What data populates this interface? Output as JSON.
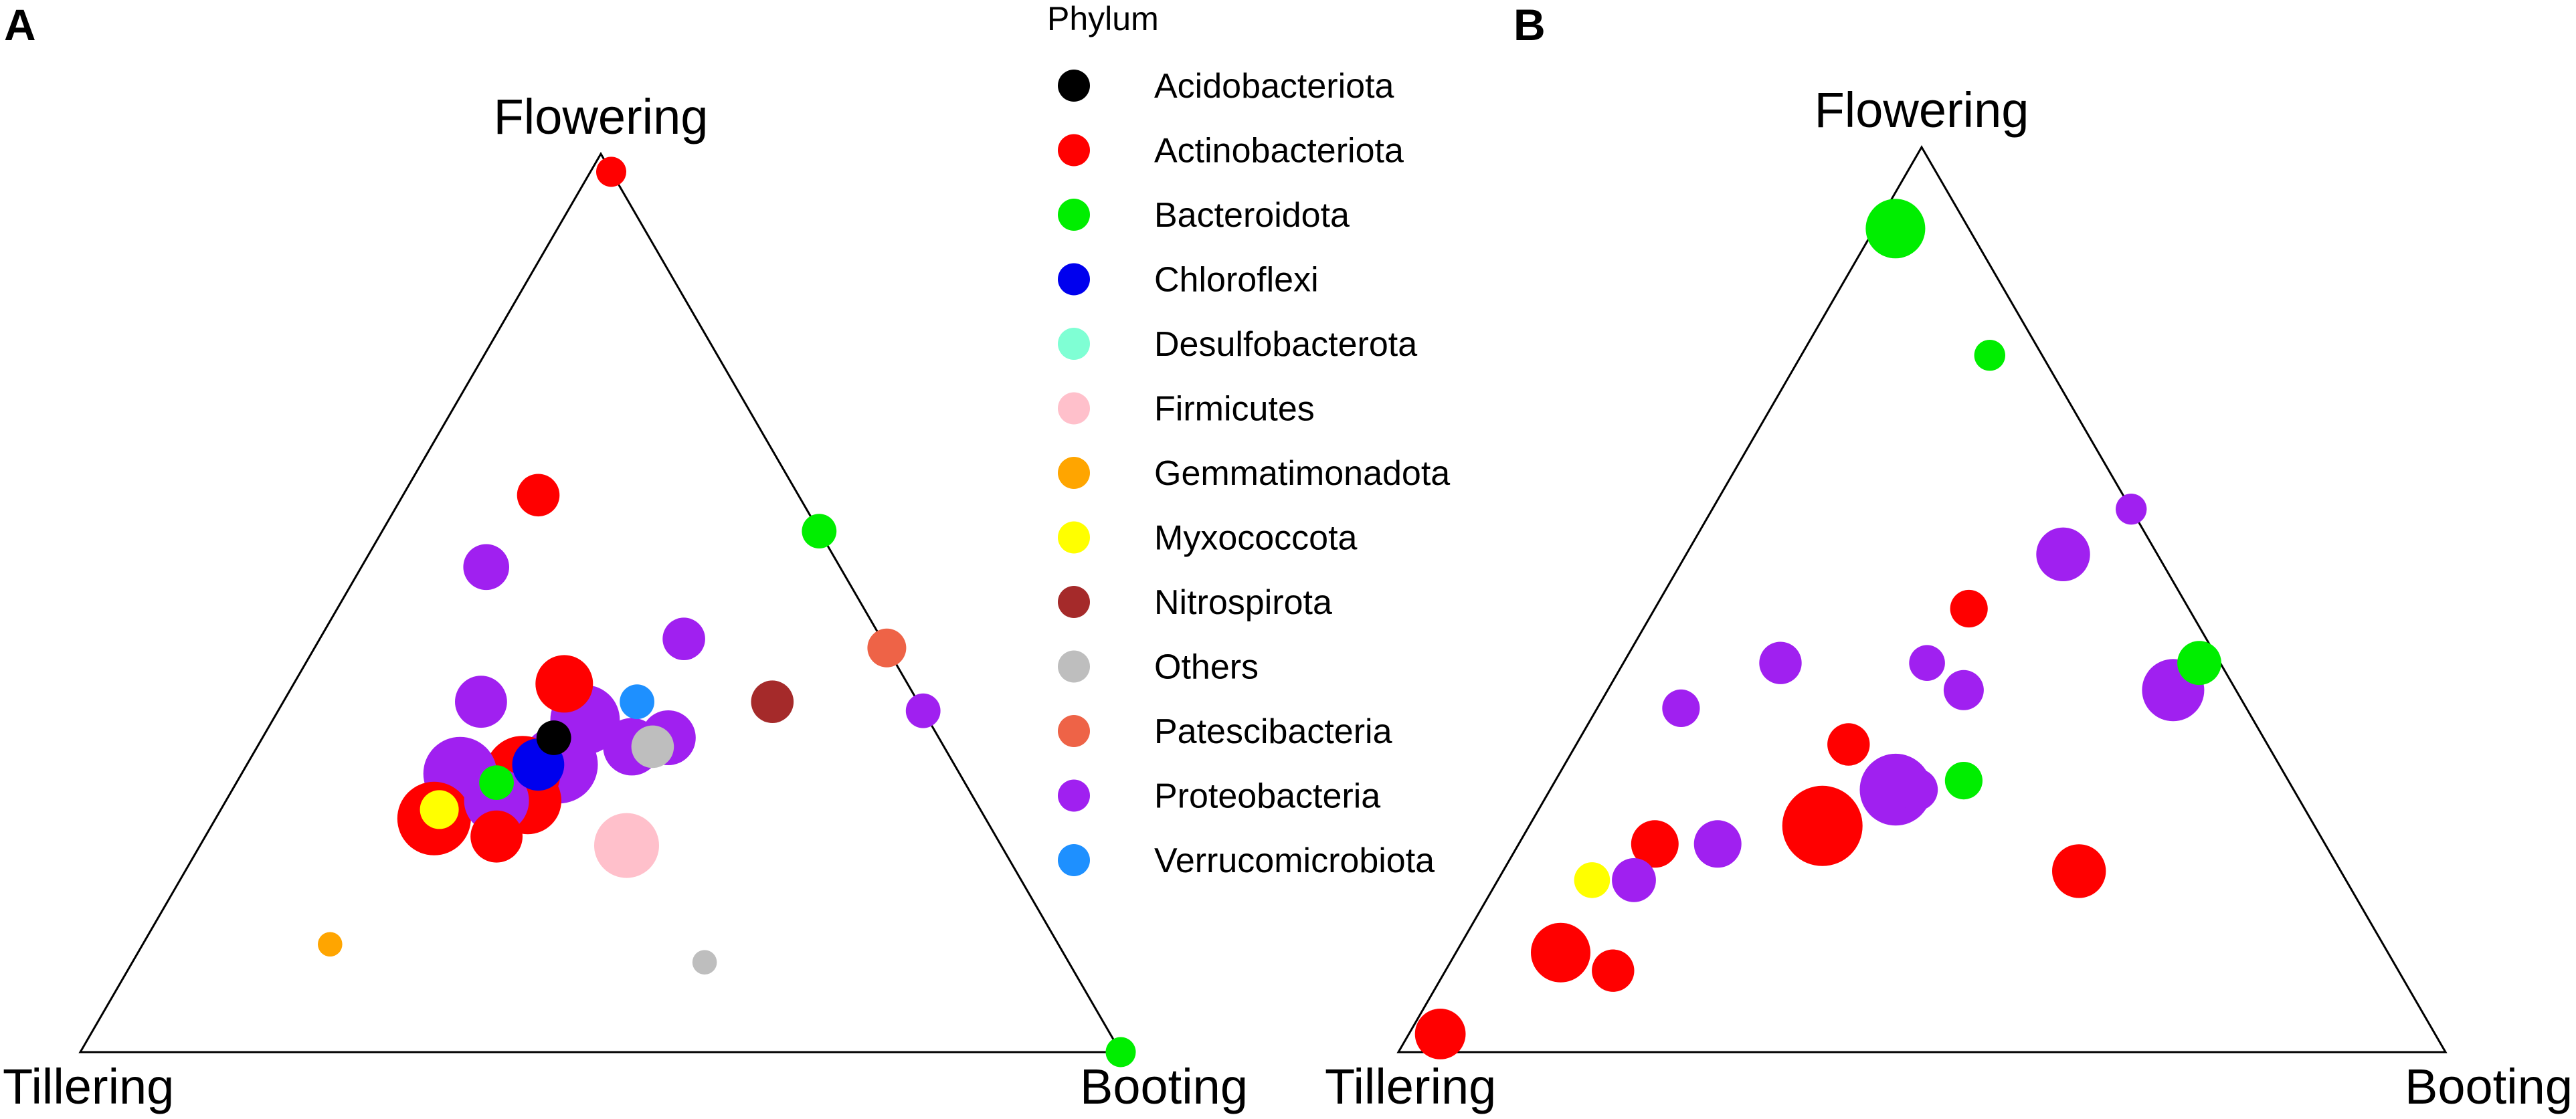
{
  "panels": {
    "a_label": "A",
    "b_label": "B"
  },
  "legend": {
    "title": "Phylum",
    "items": [
      {
        "name": "Acidobacteriota",
        "color": "#000000"
      },
      {
        "name": "Actinobacteriota",
        "color": "#ff0000"
      },
      {
        "name": "Bacteroidota",
        "color": "#00ee00"
      },
      {
        "name": "Chloroflexi",
        "color": "#0000ee"
      },
      {
        "name": "Desulfobacterota",
        "color": "#7fffd4"
      },
      {
        "name": "Firmicutes",
        "color": "#ffc0cb"
      },
      {
        "name": "Gemmatimonadota",
        "color": "#ffa500"
      },
      {
        "name": "Myxococcota",
        "color": "#ffff00"
      },
      {
        "name": "Nitrospirota",
        "color": "#a52a2a"
      },
      {
        "name": "Others",
        "color": "#bebebe"
      },
      {
        "name": "Patescibacteria",
        "color": "#ee6347"
      },
      {
        "name": "Proteobacteria",
        "color": "#a020f0"
      },
      {
        "name": "Verrucomicrobiota",
        "color": "#1e90ff"
      }
    ]
  },
  "chart_data": [
    {
      "type": "scatter",
      "subtype": "ternary",
      "panel": "A",
      "vertices": {
        "top": "Flowering",
        "left": "Tillering",
        "right": "Booting"
      },
      "points": [
        {
          "phylum": "Proteobacteria",
          "tillering": 0.38,
          "booting": 0.3,
          "flowering": 0.32,
          "size": 1.0
        },
        {
          "phylum": "Actinobacteriota",
          "tillering": 0.42,
          "booting": 0.27,
          "flowering": 0.31,
          "size": 0.95
        },
        {
          "phylum": "Proteobacteria",
          "tillering": 0.48,
          "booting": 0.21,
          "flowering": 0.31,
          "size": 0.9
        },
        {
          "phylum": "Actinobacteriota",
          "tillering": 0.53,
          "booting": 0.21,
          "flowering": 0.26,
          "size": 0.9
        },
        {
          "phylum": "Firmicutes",
          "tillering": 0.36,
          "booting": 0.41,
          "flowering": 0.23,
          "size": 0.7
        },
        {
          "phylum": "Proteobacteria",
          "tillering": 0.33,
          "booting": 0.3,
          "flowering": 0.37,
          "size": 0.8
        },
        {
          "phylum": "Actinobacteriota",
          "tillering": 0.43,
          "booting": 0.29,
          "flowering": 0.28,
          "size": 0.75
        },
        {
          "phylum": "Proteobacteria",
          "tillering": 0.46,
          "booting": 0.26,
          "flowering": 0.28,
          "size": 0.7
        },
        {
          "phylum": "Proteobacteria",
          "tillering": 0.3,
          "booting": 0.36,
          "flowering": 0.34,
          "size": 0.55
        },
        {
          "phylum": "Chloroflexi",
          "tillering": 0.4,
          "booting": 0.28,
          "flowering": 0.32,
          "size": 0.45
        },
        {
          "phylum": "Actinobacteriota",
          "tillering": 0.33,
          "booting": 0.26,
          "flowering": 0.41,
          "size": 0.55
        },
        {
          "phylum": "Proteobacteria",
          "tillering": 0.26,
          "booting": 0.39,
          "flowering": 0.35,
          "size": 0.5
        },
        {
          "phylum": "Proteobacteria",
          "tillering": 0.42,
          "booting": 0.19,
          "flowering": 0.39,
          "size": 0.45
        },
        {
          "phylum": "Actinobacteriota",
          "tillering": 0.48,
          "booting": 0.28,
          "flowering": 0.24,
          "size": 0.45
        },
        {
          "phylum": "Nitrospirota",
          "tillering": 0.14,
          "booting": 0.47,
          "flowering": 0.39,
          "size": 0.3
        },
        {
          "phylum": "Proteobacteria",
          "tillering": 0.34,
          "booting": 0.12,
          "flowering": 0.54,
          "size": 0.35
        },
        {
          "phylum": "Actinobacteriota",
          "tillering": 0.25,
          "booting": 0.13,
          "flowering": 0.62,
          "size": 0.3
        },
        {
          "phylum": "Proteobacteria",
          "tillering": 0.19,
          "booting": 0.35,
          "flowering": 0.46,
          "size": 0.3
        },
        {
          "phylum": "Others",
          "tillering": 0.28,
          "booting": 0.38,
          "flowering": 0.34,
          "size": 0.3
        },
        {
          "phylum": "Myxococcota",
          "tillering": 0.52,
          "booting": 0.21,
          "flowering": 0.27,
          "size": 0.25
        },
        {
          "phylum": "Acidobacteriota",
          "tillering": 0.37,
          "booting": 0.28,
          "flowering": 0.35,
          "size": 0.2
        },
        {
          "phylum": "Bacteroidota",
          "tillering": 0.45,
          "booting": 0.25,
          "flowering": 0.3,
          "size": 0.2
        },
        {
          "phylum": "Verrucomicrobiota",
          "tillering": 0.27,
          "booting": 0.34,
          "flowering": 0.39,
          "size": 0.2
        },
        {
          "phylum": "Patescibacteria",
          "tillering": 0.0,
          "booting": 0.55,
          "flowering": 0.45,
          "size": 0.25
        },
        {
          "phylum": "Bacteroidota",
          "tillering": 0.0,
          "booting": 0.42,
          "flowering": 0.58,
          "size": 0.2
        },
        {
          "phylum": "Proteobacteria",
          "tillering": 0.0,
          "booting": 0.62,
          "flowering": 0.38,
          "size": 0.2
        },
        {
          "phylum": "Actinobacteriota",
          "tillering": 0.0,
          "booting": 0.02,
          "flowering": 0.98,
          "size": 0.15
        },
        {
          "phylum": "Bacteroidota",
          "tillering": 0.0,
          "booting": 1.0,
          "flowering": 0.0,
          "size": 0.15
        },
        {
          "phylum": "Others",
          "tillering": 0.35,
          "booting": 0.55,
          "flowering": 0.1,
          "size": 0.1
        },
        {
          "phylum": "Gemmatimonadota",
          "tillering": 0.7,
          "booting": 0.18,
          "flowering": 0.12,
          "size": 0.1
        }
      ]
    },
    {
      "type": "scatter",
      "subtype": "ternary",
      "panel": "B",
      "vertices": {
        "top": "Flowering",
        "left": "Tillering",
        "right": "Booting"
      },
      "points": [
        {
          "phylum": "Bacteroidota",
          "tillering": 0.07,
          "booting": 0.02,
          "flowering": 0.91,
          "size": 0.55
        },
        {
          "phylum": "Actinobacteriota",
          "tillering": 0.47,
          "booting": 0.28,
          "flowering": 0.25,
          "size": 1.0
        },
        {
          "phylum": "Proteobacteria",
          "tillering": 0.38,
          "booting": 0.33,
          "flowering": 0.29,
          "size": 0.8
        },
        {
          "phylum": "Actinobacteriota",
          "tillering": 0.25,
          "booting": 0.55,
          "flowering": 0.2,
          "size": 0.45
        },
        {
          "phylum": "Proteobacteria",
          "tillering": 0.06,
          "booting": 0.54,
          "flowering": 0.4,
          "size": 0.6
        },
        {
          "phylum": "Proteobacteria",
          "tillering": 0.09,
          "booting": 0.36,
          "flowering": 0.55,
          "size": 0.45
        },
        {
          "phylum": "Actinobacteriota",
          "tillering": 0.79,
          "booting": 0.1,
          "flowering": 0.11,
          "size": 0.55
        },
        {
          "phylum": "Actinobacteriota",
          "tillering": 0.95,
          "booting": 0.03,
          "flowering": 0.02,
          "size": 0.4
        },
        {
          "phylum": "Actinobacteriota",
          "tillering": 0.64,
          "booting": 0.13,
          "flowering": 0.23,
          "size": 0.35
        },
        {
          "phylum": "Actinobacteriota",
          "tillering": 0.75,
          "booting": 0.16,
          "flowering": 0.09,
          "size": 0.28
        },
        {
          "phylum": "Proteobacteria",
          "tillering": 0.58,
          "booting": 0.19,
          "flowering": 0.23,
          "size": 0.35
        },
        {
          "phylum": "Proteobacteria",
          "tillering": 0.68,
          "booting": 0.13,
          "flowering": 0.19,
          "size": 0.3
        },
        {
          "phylum": "Proteobacteria",
          "tillering": 0.42,
          "booting": 0.15,
          "flowering": 0.43,
          "size": 0.28
        },
        {
          "phylum": "Actinobacteriota",
          "tillering": 0.4,
          "booting": 0.26,
          "flowering": 0.34,
          "size": 0.28
        },
        {
          "phylum": "Proteobacteria",
          "tillering": 0.36,
          "booting": 0.35,
          "flowering": 0.29,
          "size": 0.28
        },
        {
          "phylum": "Bacteroidota",
          "tillering": 0.31,
          "booting": 0.39,
          "flowering": 0.3,
          "size": 0.22
        },
        {
          "phylum": "Proteobacteria",
          "tillering": 0.26,
          "booting": 0.34,
          "flowering": 0.4,
          "size": 0.25
        },
        {
          "phylum": "Bacteroidota",
          "tillering": 0.02,
          "booting": 0.55,
          "flowering": 0.43,
          "size": 0.3
        },
        {
          "phylum": "Actinobacteriota",
          "tillering": 0.21,
          "booting": 0.3,
          "flowering": 0.49,
          "size": 0.22
        },
        {
          "phylum": "Proteobacteria",
          "tillering": 0.28,
          "booting": 0.29,
          "flowering": 0.43,
          "size": 0.2
        },
        {
          "phylum": "Myxococcota",
          "tillering": 0.72,
          "booting": 0.09,
          "flowering": 0.19,
          "size": 0.2
        },
        {
          "phylum": "Bacteroidota",
          "tillering": 0.05,
          "booting": 0.18,
          "flowering": 0.77,
          "size": 0.15
        },
        {
          "phylum": "Proteobacteria",
          "tillering": 0.54,
          "booting": 0.08,
          "flowering": 0.38,
          "size": 0.22
        },
        {
          "phylum": "Proteobacteria",
          "tillering": 0.0,
          "booting": 0.4,
          "flowering": 0.6,
          "size": 0.15
        }
      ]
    }
  ]
}
